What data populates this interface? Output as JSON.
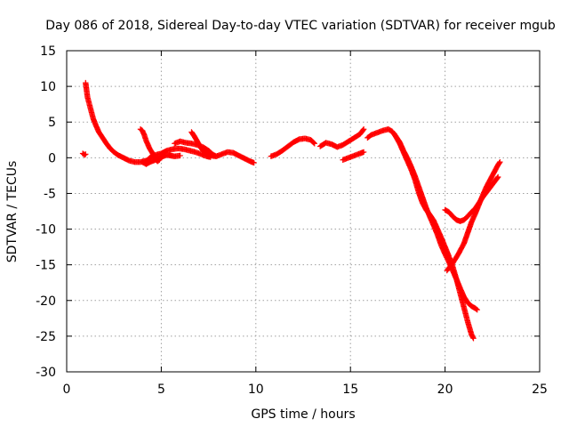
{
  "chart_data": {
    "type": "scatter",
    "title": "Day 086 of 2018, Sidereal Day-to-day VTEC variation (SDTVAR) for receiver mgub",
    "xlabel": "GPS time / hours",
    "ylabel": "SDTVAR / TECUs",
    "xlim": [
      0,
      25
    ],
    "ylim": [
      -30,
      15
    ],
    "xticks": [
      "0",
      "5",
      "10",
      "15",
      "20",
      "25"
    ],
    "yticks": [
      "15",
      "10",
      "5",
      "0",
      "-5",
      "-10",
      "-15",
      "-20",
      "-25",
      "-30"
    ],
    "grid": true,
    "marker": "plus",
    "color": "#ff0000",
    "series": [
      {
        "points": [
          [
            0.85,
            0.6
          ],
          [
            0.95,
            0.4
          ],
          [
            1.0,
            0.5
          ]
        ]
      },
      {
        "points": [
          [
            1.0,
            10.5
          ],
          [
            1.05,
            9.5
          ],
          [
            1.1,
            8.5
          ],
          [
            1.2,
            7.5
          ],
          [
            1.3,
            6.5
          ],
          [
            1.4,
            5.5
          ],
          [
            1.55,
            4.5
          ],
          [
            1.7,
            3.6
          ],
          [
            1.9,
            2.8
          ],
          [
            2.1,
            2.0
          ],
          [
            2.3,
            1.3
          ],
          [
            2.5,
            0.8
          ],
          [
            2.7,
            0.4
          ],
          [
            3.0,
            0.0
          ],
          [
            3.3,
            -0.4
          ],
          [
            3.6,
            -0.6
          ],
          [
            3.9,
            -0.6
          ],
          [
            4.2,
            -0.4
          ]
        ]
      },
      {
        "points": [
          [
            3.9,
            4.0
          ],
          [
            4.0,
            3.8
          ],
          [
            4.1,
            3.2
          ],
          [
            4.2,
            2.4
          ],
          [
            4.3,
            1.8
          ],
          [
            4.4,
            1.2
          ],
          [
            4.5,
            0.8
          ],
          [
            4.6,
            0.3
          ],
          [
            4.7,
            -0.2
          ],
          [
            4.8,
            -0.5
          ],
          [
            4.9,
            -0.3
          ]
        ]
      },
      {
        "points": [
          [
            4.0,
            -0.6
          ],
          [
            4.2,
            -0.9
          ],
          [
            4.4,
            -0.6
          ],
          [
            4.6,
            -0.4
          ],
          [
            4.9,
            0.0
          ],
          [
            5.1,
            0.2
          ],
          [
            5.3,
            0.4
          ],
          [
            5.5,
            0.3
          ],
          [
            5.7,
            0.2
          ],
          [
            6.0,
            0.3
          ]
        ]
      },
      {
        "points": [
          [
            4.2,
            -0.5
          ],
          [
            4.4,
            0.0
          ],
          [
            4.7,
            0.4
          ],
          [
            5.0,
            0.6
          ],
          [
            5.3,
            1.0
          ],
          [
            5.6,
            1.2
          ],
          [
            5.9,
            1.3
          ],
          [
            6.2,
            1.2
          ],
          [
            6.5,
            1.0
          ],
          [
            6.8,
            0.8
          ],
          [
            7.1,
            0.5
          ],
          [
            7.4,
            0.2
          ],
          [
            7.6,
            0.1
          ]
        ]
      },
      {
        "points": [
          [
            5.7,
            2.0
          ],
          [
            6.0,
            2.3
          ],
          [
            6.3,
            2.1
          ],
          [
            6.6,
            2.0
          ],
          [
            6.9,
            1.8
          ],
          [
            7.2,
            1.5
          ],
          [
            7.5,
            1.0
          ],
          [
            7.7,
            0.5
          ],
          [
            7.9,
            0.2
          ]
        ]
      },
      {
        "points": [
          [
            6.6,
            3.6
          ],
          [
            6.75,
            3.0
          ],
          [
            6.9,
            2.3
          ],
          [
            7.05,
            1.6
          ],
          [
            7.2,
            1.0
          ],
          [
            7.4,
            0.6
          ],
          [
            7.6,
            0.3
          ],
          [
            7.9,
            0.2
          ],
          [
            8.2,
            0.5
          ],
          [
            8.5,
            0.8
          ],
          [
            8.8,
            0.7
          ],
          [
            9.1,
            0.3
          ],
          [
            9.4,
            -0.1
          ],
          [
            9.7,
            -0.5
          ],
          [
            9.9,
            -0.7
          ]
        ]
      },
      {
        "points": [
          [
            10.8,
            0.2
          ],
          [
            11.1,
            0.5
          ],
          [
            11.4,
            1.0
          ],
          [
            11.7,
            1.6
          ],
          [
            12.0,
            2.2
          ],
          [
            12.3,
            2.6
          ],
          [
            12.6,
            2.7
          ],
          [
            12.9,
            2.5
          ],
          [
            13.1,
            2.0
          ]
        ]
      },
      {
        "points": [
          [
            13.4,
            1.6
          ],
          [
            13.7,
            2.1
          ],
          [
            14.0,
            1.9
          ],
          [
            14.3,
            1.5
          ],
          [
            14.6,
            1.8
          ],
          [
            14.9,
            2.3
          ],
          [
            15.2,
            2.8
          ],
          [
            15.5,
            3.3
          ],
          [
            15.7,
            4.0
          ]
        ]
      },
      {
        "points": [
          [
            14.6,
            -0.3
          ],
          [
            14.9,
            0.0
          ],
          [
            15.2,
            0.3
          ],
          [
            15.5,
            0.6
          ],
          [
            15.7,
            0.8
          ]
        ]
      },
      {
        "points": [
          [
            15.9,
            2.8
          ],
          [
            16.1,
            3.2
          ],
          [
            16.4,
            3.5
          ],
          [
            16.7,
            3.8
          ],
          [
            17.0,
            4.0
          ],
          [
            17.2,
            3.7
          ],
          [
            17.4,
            3.0
          ],
          [
            17.6,
            2.2
          ],
          [
            17.8,
            1.0
          ],
          [
            18.0,
            0.0
          ],
          [
            18.2,
            -1.2
          ],
          [
            18.4,
            -2.5
          ],
          [
            18.6,
            -4.0
          ],
          [
            18.8,
            -5.5
          ],
          [
            19.0,
            -7.0
          ],
          [
            19.2,
            -8.3
          ],
          [
            19.4,
            -9.5
          ],
          [
            19.6,
            -10.8
          ],
          [
            19.8,
            -12.3
          ],
          [
            20.0,
            -13.5
          ],
          [
            20.2,
            -14.6
          ],
          [
            20.4,
            -15.8
          ],
          [
            20.6,
            -17.0
          ],
          [
            20.8,
            -18.3
          ],
          [
            21.0,
            -19.5
          ],
          [
            21.2,
            -20.3
          ],
          [
            21.4,
            -20.8
          ],
          [
            21.6,
            -21.1
          ],
          [
            21.7,
            -21.3
          ]
        ]
      },
      {
        "points": [
          [
            17.3,
            3.4
          ],
          [
            17.6,
            2.0
          ],
          [
            17.9,
            0.2
          ],
          [
            18.2,
            -1.6
          ],
          [
            18.4,
            -3.0
          ],
          [
            18.6,
            -4.8
          ],
          [
            18.8,
            -6.3
          ],
          [
            19.0,
            -7.3
          ],
          [
            19.2,
            -8.0
          ],
          [
            19.4,
            -8.8
          ],
          [
            19.6,
            -10.0
          ],
          [
            19.8,
            -11.2
          ],
          [
            20.0,
            -12.5
          ],
          [
            20.2,
            -13.8
          ],
          [
            20.4,
            -15.2
          ],
          [
            20.6,
            -17.0
          ],
          [
            20.8,
            -19.0
          ],
          [
            21.0,
            -21.0
          ],
          [
            21.2,
            -23.0
          ],
          [
            21.4,
            -24.8
          ],
          [
            21.5,
            -25.3
          ]
        ]
      },
      {
        "points": [
          [
            20.0,
            -7.3
          ],
          [
            20.2,
            -7.6
          ],
          [
            20.4,
            -8.2
          ],
          [
            20.6,
            -8.7
          ],
          [
            20.8,
            -8.9
          ],
          [
            21.0,
            -8.7
          ],
          [
            21.2,
            -8.2
          ],
          [
            21.4,
            -7.6
          ],
          [
            21.6,
            -7.1
          ],
          [
            21.8,
            -6.3
          ],
          [
            22.0,
            -5.5
          ],
          [
            22.2,
            -4.8
          ],
          [
            22.4,
            -4.1
          ],
          [
            22.6,
            -3.4
          ],
          [
            22.8,
            -2.7
          ]
        ]
      },
      {
        "points": [
          [
            20.1,
            -15.8
          ],
          [
            20.4,
            -14.8
          ],
          [
            20.7,
            -13.5
          ],
          [
            21.0,
            -12.0
          ],
          [
            21.2,
            -10.5
          ],
          [
            21.4,
            -9.0
          ],
          [
            21.6,
            -7.8
          ],
          [
            21.8,
            -6.5
          ],
          [
            22.0,
            -5.2
          ],
          [
            22.2,
            -4.0
          ],
          [
            22.4,
            -3.0
          ],
          [
            22.6,
            -2.0
          ],
          [
            22.8,
            -1.0
          ],
          [
            22.9,
            -0.6
          ]
        ]
      }
    ]
  }
}
